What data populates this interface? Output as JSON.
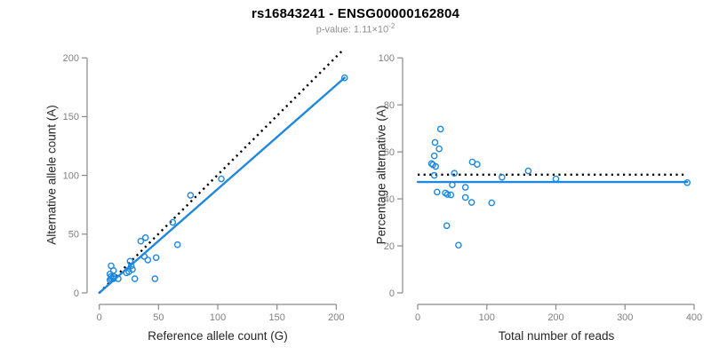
{
  "header": {
    "title": "rs16843241 - ENSG00000162804",
    "pvalue_prefix": "p-value: 1.11×10",
    "pvalue_exponent": "-2"
  },
  "colors": {
    "accent_blue": "#1e87e0",
    "identity_black": "#000000",
    "axis_gray": "#8a8a8a",
    "tick_label_gray": "#808080",
    "subtitle_gray": "#8f8f8f",
    "axis_title_dark": "#262626"
  },
  "chart_data": [
    {
      "type": "scatter",
      "xlabel": "Reference allele count (G)",
      "ylabel": "Alternative allele count (A)",
      "xticks": [
        0,
        50,
        100,
        150,
        200
      ],
      "yticks": [
        0,
        50,
        100,
        150,
        200
      ],
      "xlim": [
        0,
        207
      ],
      "ylim": [
        0,
        207
      ],
      "grid": false,
      "point_color": "#1e87e0",
      "points": [
        [
          207,
          183
        ],
        [
          103,
          97
        ],
        [
          77,
          83
        ],
        [
          62,
          60
        ],
        [
          66,
          41
        ],
        [
          48,
          30
        ],
        [
          41,
          28
        ],
        [
          38,
          31
        ],
        [
          39,
          47
        ],
        [
          35,
          44
        ],
        [
          47,
          12
        ],
        [
          30,
          12
        ],
        [
          26,
          27
        ],
        [
          27,
          23
        ],
        [
          25,
          18
        ],
        [
          28,
          20
        ],
        [
          23,
          17
        ],
        [
          16,
          12
        ],
        [
          10,
          23
        ],
        [
          9,
          16
        ],
        [
          12,
          19
        ],
        [
          10,
          14
        ],
        [
          9,
          11
        ],
        [
          10,
          12
        ],
        [
          12,
          14
        ],
        [
          12,
          12
        ]
      ],
      "lines": [
        {
          "name": "identity-line",
          "style": "dotted",
          "color": "#000000",
          "x1": 0,
          "y1": 0,
          "x2": 206,
          "y2": 207
        },
        {
          "name": "fit-line",
          "style": "solid",
          "color": "#1e87e0",
          "x1": 0,
          "y1": 0,
          "x2": 207,
          "y2": 183
        }
      ]
    },
    {
      "type": "scatter",
      "xlabel": "Total number of reads",
      "ylabel": "Percentage alternative (A)",
      "xticks": [
        0,
        100,
        200,
        300,
        400
      ],
      "yticks": [
        0,
        20,
        40,
        60,
        80,
        100
      ],
      "xlim": [
        0,
        400
      ],
      "ylim": [
        0,
        100
      ],
      "grid": false,
      "point_color": "#1e87e0",
      "points": [
        [
          390,
          46.9
        ],
        [
          200,
          48.5
        ],
        [
          160,
          51.9
        ],
        [
          122,
          49.2
        ],
        [
          107,
          38.3
        ],
        [
          78,
          38.5
        ],
        [
          69,
          40.6
        ],
        [
          69,
          44.9
        ],
        [
          86,
          54.7
        ],
        [
          79,
          55.7
        ],
        [
          59,
          20.3
        ],
        [
          42,
          28.6
        ],
        [
          53,
          50.9
        ],
        [
          50,
          46.0
        ],
        [
          43,
          41.9
        ],
        [
          48,
          41.7
        ],
        [
          40,
          42.5
        ],
        [
          28,
          42.9
        ],
        [
          33,
          69.7
        ],
        [
          25,
          64.0
        ],
        [
          31,
          61.3
        ],
        [
          24,
          58.3
        ],
        [
          20,
          55.0
        ],
        [
          22,
          54.5
        ],
        [
          26,
          53.8
        ],
        [
          24,
          50.0
        ]
      ],
      "lines": [
        {
          "name": "expected-50pct-line",
          "style": "dotted",
          "color": "#000000",
          "x1": 0,
          "y1": 50.3,
          "x2": 385,
          "y2": 50.3
        },
        {
          "name": "fit-line",
          "style": "solid",
          "color": "#1e87e0",
          "x1": 0,
          "y1": 47.2,
          "x2": 390,
          "y2": 47.2
        }
      ]
    }
  ]
}
